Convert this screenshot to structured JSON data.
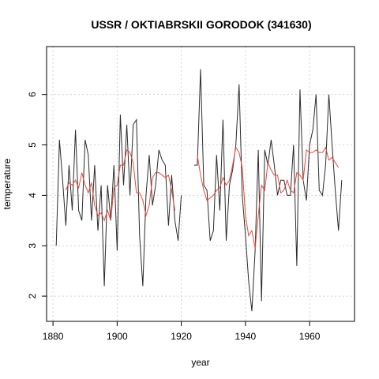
{
  "chart_data": {
    "type": "line",
    "title": "USSR / OKTIABRSKII GORODOK (341630)",
    "xlabel": "year",
    "ylabel": "temperature",
    "xlim": [
      1878,
      1974
    ],
    "ylim": [
      1.5,
      6.95
    ],
    "xticks": [
      1880,
      1900,
      1920,
      1940,
      1960
    ],
    "yticks": [
      2,
      3,
      4,
      5,
      6
    ],
    "grid": true,
    "series": [
      {
        "color": "#2b2b2b",
        "x": [
          1881,
          1882,
          1883,
          1884,
          1885,
          1886,
          1887,
          1888,
          1889,
          1890,
          1891,
          1892,
          1893,
          1894,
          1895,
          1896,
          1897,
          1898,
          1899,
          1900,
          1901,
          1902,
          1903,
          1904,
          1905,
          1906,
          1907,
          1908,
          1909,
          1910,
          1911,
          1912,
          1913,
          1914,
          1915,
          1916,
          1917,
          1918,
          1919,
          1920,
          1921,
          1922,
          1923,
          1924,
          1925,
          1926,
          1927,
          1928,
          1929,
          1930,
          1931,
          1932,
          1933,
          1934,
          1935,
          1936,
          1937,
          1938,
          1939,
          1940,
          1941,
          1942,
          1943,
          1944,
          1945,
          1946,
          1947,
          1948,
          1949,
          1950,
          1951,
          1952,
          1953,
          1954,
          1955,
          1956,
          1957,
          1958,
          1959,
          1960,
          1961,
          1962,
          1963,
          1964,
          1965,
          1966,
          1967,
          1968,
          1969,
          1970
        ],
        "y": [
          3.0,
          5.1,
          4.3,
          3.4,
          4.6,
          3.7,
          5.3,
          3.7,
          3.5,
          5.1,
          4.8,
          3.5,
          4.6,
          3.3,
          4.2,
          2.2,
          4.2,
          3.5,
          4.6,
          2.9,
          5.6,
          4.2,
          5.4,
          4.0,
          5.4,
          5.5,
          3.2,
          2.2,
          4.0,
          4.8,
          3.8,
          4.2,
          4.9,
          4.7,
          4.6,
          3.4,
          4.4,
          3.5,
          3.1,
          4.0,
          null,
          null,
          null,
          4.6,
          4.6,
          6.5,
          4.2,
          4.1,
          3.1,
          3.3,
          4.8,
          3.7,
          5.5,
          3.1,
          4.2,
          4.5,
          5.0,
          6.2,
          4.0,
          3.2,
          2.3,
          1.7,
          2.9,
          4.9,
          1.9,
          4.9,
          4.6,
          5.1,
          4.6,
          4.0,
          4.3,
          4.3,
          4.0,
          4.0,
          5.0,
          2.6,
          6.1,
          4.3,
          3.9,
          5.0,
          5.3,
          6.0,
          4.1,
          4.0,
          4.6,
          6.0,
          5.0,
          4.1,
          3.3,
          4.3
        ]
      },
      {
        "color": "#e8483b",
        "x": [
          1884,
          1885,
          1886,
          1887,
          1888,
          1889,
          1890,
          1891,
          1892,
          1893,
          1894,
          1895,
          1896,
          1897,
          1898,
          1899,
          1900,
          1901,
          1902,
          1903,
          1904,
          1905,
          1906,
          1907,
          1908,
          1909,
          1910,
          1911,
          1912,
          1913,
          1914,
          1915,
          1916,
          1917,
          1918,
          1919,
          1920,
          1921,
          1922,
          1923,
          1924,
          1925,
          1926,
          1927,
          1928,
          1929,
          1930,
          1931,
          1932,
          1933,
          1934,
          1935,
          1936,
          1937,
          1938,
          1939,
          1940,
          1941,
          1942,
          1943,
          1944,
          1945,
          1946,
          1947,
          1948,
          1949,
          1950,
          1951,
          1952,
          1953,
          1954,
          1955,
          1956,
          1957,
          1958,
          1959,
          1960,
          1961,
          1962,
          1963,
          1964,
          1965,
          1966,
          1967,
          1968,
          1969
        ],
        "y": [
          4.1,
          4.25,
          4.2,
          4.3,
          4.15,
          4.45,
          4.2,
          4.05,
          4.25,
          3.8,
          3.6,
          3.65,
          3.5,
          3.7,
          3.5,
          4.15,
          4.2,
          4.6,
          4.6,
          4.9,
          4.85,
          4.65,
          4.05,
          4.05,
          3.9,
          3.6,
          3.8,
          4.35,
          4.45,
          4.45,
          4.4,
          4.35,
          4.4,
          4.1,
          3.7,
          null,
          null,
          null,
          null,
          null,
          null,
          4.8,
          4.4,
          4.1,
          3.9,
          3.95,
          4.0,
          4.1,
          4.15,
          4.35,
          4.2,
          4.3,
          4.6,
          4.95,
          4.85,
          4.55,
          3.6,
          3.2,
          3.3,
          2.95,
          3.6,
          4.2,
          4.1,
          4.65,
          4.5,
          4.4,
          4.4,
          4.05,
          4.1,
          4.3,
          4.1,
          4.05,
          4.45,
          4.4,
          4.3,
          4.9,
          4.85,
          4.85,
          4.9,
          4.85,
          4.85,
          4.95,
          4.7,
          4.75,
          4.65,
          4.55
        ]
      }
    ]
  }
}
